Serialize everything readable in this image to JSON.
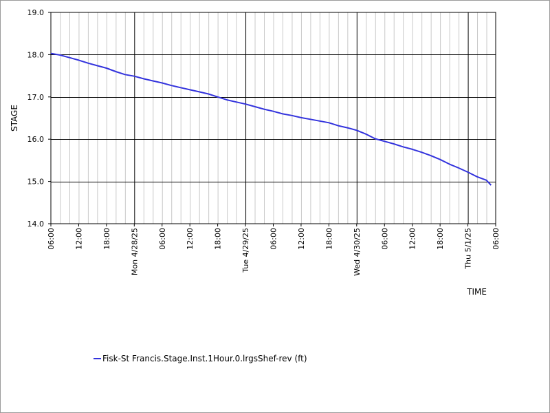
{
  "chart_data": {
    "type": "line",
    "ylabel": "STAGE",
    "xlabel": "TIME",
    "ylim": [
      14.0,
      19.0
    ],
    "yticks": [
      "14.0",
      "15.0",
      "16.0",
      "17.0",
      "18.0",
      "19.0"
    ],
    "xlim_hours": [
      0,
      96
    ],
    "xticks": [
      {
        "h": 0,
        "label": "06:00",
        "major": false
      },
      {
        "h": 6,
        "label": "12:00",
        "major": false
      },
      {
        "h": 12,
        "label": "18:00",
        "major": false
      },
      {
        "h": 18,
        "label": "Mon 4/28/25",
        "major": true
      },
      {
        "h": 24,
        "label": "06:00",
        "major": false
      },
      {
        "h": 30,
        "label": "12:00",
        "major": false
      },
      {
        "h": 36,
        "label": "18:00",
        "major": false
      },
      {
        "h": 42,
        "label": "Tue 4/29/25",
        "major": true
      },
      {
        "h": 48,
        "label": "06:00",
        "major": false
      },
      {
        "h": 54,
        "label": "12:00",
        "major": false
      },
      {
        "h": 60,
        "label": "18:00",
        "major": false
      },
      {
        "h": 66,
        "label": "Wed 4/30/25",
        "major": true
      },
      {
        "h": 72,
        "label": "06:00",
        "major": false
      },
      {
        "h": 78,
        "label": "12:00",
        "major": false
      },
      {
        "h": 84,
        "label": "18:00",
        "major": false
      },
      {
        "h": 90,
        "label": "Thu 5/1/25",
        "major": true
      },
      {
        "h": 96,
        "label": "06:00",
        "major": false
      }
    ],
    "series": [
      {
        "name": "Fisk-St Francis.Stage.Inst.1Hour.0.lrgsShef-rev (ft)",
        "color": "#3333dd",
        "points": [
          [
            0,
            18.03
          ],
          [
            2,
            17.99
          ],
          [
            4,
            17.93
          ],
          [
            6,
            17.87
          ],
          [
            8,
            17.8
          ],
          [
            10,
            17.74
          ],
          [
            12,
            17.68
          ],
          [
            14,
            17.6
          ],
          [
            16,
            17.53
          ],
          [
            18,
            17.49
          ],
          [
            20,
            17.43
          ],
          [
            22,
            17.38
          ],
          [
            24,
            17.33
          ],
          [
            26,
            17.27
          ],
          [
            28,
            17.22
          ],
          [
            30,
            17.17
          ],
          [
            32,
            17.12
          ],
          [
            34,
            17.07
          ],
          [
            36,
            17.0
          ],
          [
            38,
            16.93
          ],
          [
            40,
            16.88
          ],
          [
            42,
            16.83
          ],
          [
            44,
            16.77
          ],
          [
            46,
            16.71
          ],
          [
            48,
            16.66
          ],
          [
            50,
            16.6
          ],
          [
            52,
            16.56
          ],
          [
            54,
            16.51
          ],
          [
            56,
            16.47
          ],
          [
            58,
            16.43
          ],
          [
            60,
            16.39
          ],
          [
            62,
            16.32
          ],
          [
            64,
            16.27
          ],
          [
            66,
            16.21
          ],
          [
            68,
            16.12
          ],
          [
            70,
            16.01
          ],
          [
            72,
            15.95
          ],
          [
            74,
            15.89
          ],
          [
            76,
            15.82
          ],
          [
            78,
            15.76
          ],
          [
            80,
            15.69
          ],
          [
            82,
            15.61
          ],
          [
            84,
            15.52
          ],
          [
            86,
            15.41
          ],
          [
            88,
            15.32
          ],
          [
            90,
            15.22
          ],
          [
            92,
            15.11
          ],
          [
            94,
            15.03
          ],
          [
            95,
            14.91
          ]
        ]
      }
    ]
  }
}
